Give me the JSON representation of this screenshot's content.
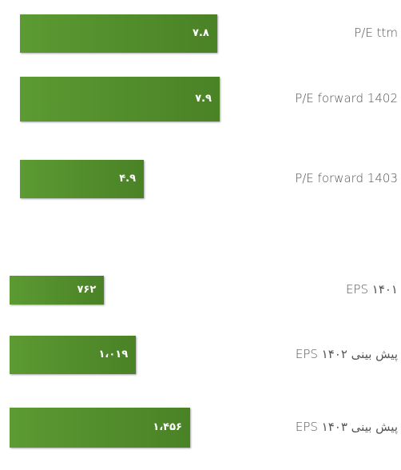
{
  "chart_data": [
    {
      "type": "bar",
      "orientation": "horizontal",
      "color": "#5c9a32",
      "categories": [
        "P/E ttm",
        "P/E forward 1402",
        "P/E forward 1403"
      ],
      "values": [
        7.8,
        7.9,
        4.9
      ],
      "value_labels": [
        "۷.۸",
        "۷.۹",
        "۴.۹"
      ]
    },
    {
      "type": "bar",
      "orientation": "horizontal",
      "color": "#5c9a32",
      "categories": [
        "EPS ۱۴۰۱",
        "پیش بینی EPS ۱۴۰۲",
        "پیش بینی EPS ۱۴۰۳"
      ],
      "values": [
        762,
        1019,
        1456
      ],
      "value_labels": [
        "۷۶۲",
        "۱،۰۱۹",
        "۱،۴۵۶"
      ]
    }
  ]
}
